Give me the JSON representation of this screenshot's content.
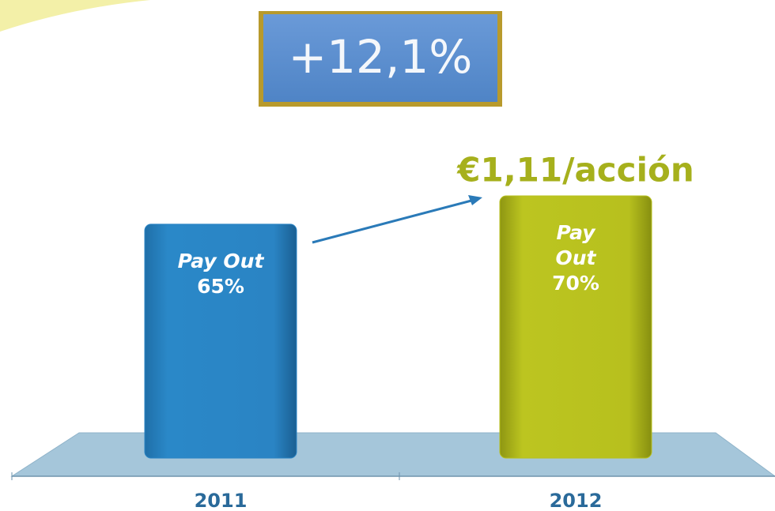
{
  "chart_data": {
    "type": "bar",
    "badge": "+12,1%",
    "categories": [
      "2011",
      "2012"
    ],
    "values": [
      0.99,
      1.11
    ],
    "value_labels": [
      null,
      "€1,11/acción"
    ],
    "bar_text": [
      [
        "Pay Out",
        "65%"
      ],
      [
        "Pay",
        "Out",
        "70%"
      ]
    ],
    "colors": [
      "#2a84c4",
      "#b7c01e"
    ],
    "ylim": [
      0,
      1.11
    ]
  }
}
